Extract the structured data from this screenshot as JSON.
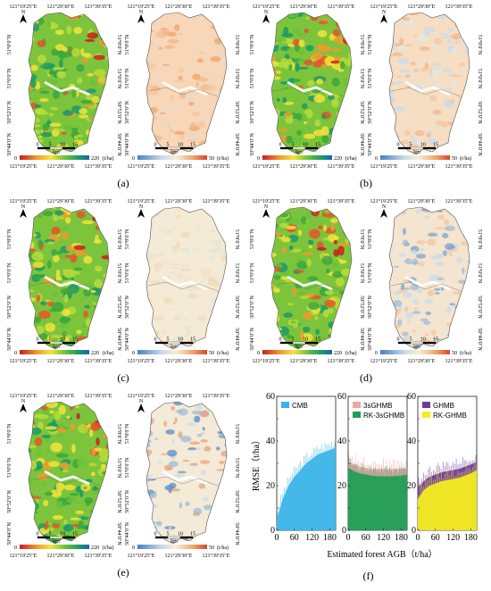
{
  "panels": [
    {
      "id": "a",
      "label": "(a)",
      "left_colorbar": {
        "min": "0",
        "max": "220",
        "unit": "(t/ha)"
      },
      "right_colorbar": {
        "min": "0",
        "max": "50",
        "unit": "(t/ha)"
      },
      "right_style": "mostly-orange"
    },
    {
      "id": "b",
      "label": "(b)",
      "left_colorbar": {
        "min": "0",
        "max": "220",
        "unit": "(t/ha)"
      },
      "right_colorbar": {
        "min": "0",
        "max": "50",
        "unit": "(t/ha)"
      },
      "right_style": "orange-blue-spots"
    },
    {
      "id": "c",
      "label": "(c)",
      "left_colorbar": {
        "min": "0",
        "max": "220",
        "unit": "(t/ha)"
      },
      "right_colorbar": {
        "min": "0",
        "max": "50",
        "unit": "(t/ha)"
      },
      "right_style": "pale"
    },
    {
      "id": "d",
      "label": "(d)",
      "left_colorbar": {
        "min": "0",
        "max": "220",
        "unit": "(t/ha)"
      },
      "right_colorbar": {
        "min": "0",
        "max": "50",
        "unit": "(t/ha)"
      },
      "right_style": "blue-patches"
    },
    {
      "id": "e",
      "label": "(e)",
      "left_colorbar": {
        "min": "0",
        "max": "220",
        "unit": "(t/ha)"
      },
      "right_colorbar": {
        "min": "0",
        "max": "50",
        "unit": "(t/ha)"
      },
      "right_style": "strong-blue"
    }
  ],
  "map_text": {
    "lon_ticks": [
      "121°19′25″E",
      "121°29′30″E",
      "121°39′35″E"
    ],
    "lat_ticks": [
      "51°8′0″N",
      "51°0′0″N",
      "50°52′0″N",
      "50°44′0″N"
    ],
    "scale_ticks": [
      "0",
      "5",
      "10",
      "15"
    ],
    "scale_unit": "km",
    "north_symbol": "N"
  },
  "panel_f": {
    "label": "(f)",
    "xlabel": "Estimated forest AGB（t/ha）",
    "ylabel": "RMSE（t/ha）",
    "colors": {
      "CMB": "#3ab4e8",
      "3sGHMB": "#eca7a7",
      "RK-3sGHMB": "#1f9e55",
      "GHMB": "#6b3aa0",
      "RK-GHMB": "#f5ee1c"
    }
  },
  "chart_data": [
    {
      "type": "area",
      "title": "",
      "xlabel": "Estimated forest AGB（t/ha）",
      "ylabel": "RMSE（t/ha）",
      "xlim": [
        0,
        200
      ],
      "ylim": [
        0,
        60
      ],
      "xticks": [
        0,
        60,
        120,
        180
      ],
      "yticks": [
        0,
        10,
        20,
        30,
        40,
        50,
        60
      ],
      "series": [
        {
          "name": "CMB",
          "x": [
            0,
            20,
            40,
            60,
            80,
            100,
            120,
            140,
            160,
            180,
            200
          ],
          "values": [
            5,
            14,
            20,
            24,
            27,
            30,
            32,
            34,
            35,
            36,
            37
          ]
        }
      ]
    },
    {
      "type": "area",
      "title": "",
      "xlabel": "",
      "ylabel": "",
      "xlim": [
        0,
        200
      ],
      "ylim": [
        0,
        60
      ],
      "xticks": [
        0,
        60,
        120,
        180
      ],
      "yticks": [
        0,
        10,
        20,
        30,
        40,
        50,
        60
      ],
      "series": [
        {
          "name": "3sGHMB",
          "x": [
            0,
            20,
            40,
            60,
            80,
            100,
            120,
            140,
            160,
            180,
            200
          ],
          "values": [
            31,
            29.5,
            28.5,
            28,
            27.5,
            27.5,
            27.5,
            27.5,
            27.5,
            27.5,
            28
          ]
        },
        {
          "name": "RK-3sGHMB",
          "x": [
            0,
            20,
            40,
            60,
            80,
            100,
            120,
            140,
            160,
            180,
            200
          ],
          "values": [
            28,
            26.5,
            25.5,
            25,
            24.5,
            24.3,
            24.2,
            24.2,
            24.3,
            24.5,
            25
          ]
        }
      ]
    },
    {
      "type": "area",
      "title": "",
      "xlabel": "",
      "ylabel": "",
      "xlim": [
        0,
        200
      ],
      "ylim": [
        0,
        60
      ],
      "xticks": [
        0,
        60,
        120,
        180
      ],
      "yticks": [
        0,
        10,
        20,
        30,
        40,
        50,
        60
      ],
      "series": [
        {
          "name": "GHMB",
          "x": [
            0,
            20,
            40,
            60,
            80,
            100,
            120,
            140,
            160,
            180,
            200
          ],
          "values": [
            19,
            22,
            24,
            25,
            26,
            26.5,
            27,
            27.5,
            28.5,
            29.5,
            30.5
          ]
        },
        {
          "name": "RK-GHMB",
          "x": [
            0,
            20,
            40,
            60,
            80,
            100,
            120,
            140,
            160,
            180,
            200
          ],
          "values": [
            14,
            18,
            20,
            21,
            22,
            22.5,
            23,
            23.5,
            24.5,
            25.5,
            27
          ]
        }
      ]
    }
  ]
}
